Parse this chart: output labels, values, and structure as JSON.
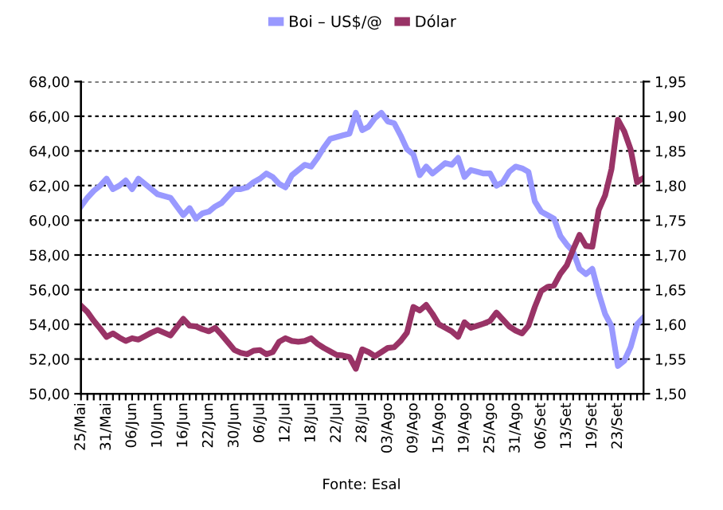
{
  "chart_data": {
    "type": "line",
    "legend": "top",
    "grid": "y",
    "line_style": "solid",
    "marker": "none",
    "annotations": [
      "Fonte: Esal"
    ],
    "categories": [
      "25/Mai",
      null,
      null,
      null,
      "31/Mai",
      null,
      null,
      null,
      "06/Jun",
      null,
      null,
      null,
      "10/Jun",
      null,
      null,
      null,
      "16/Jun",
      null,
      null,
      null,
      "22/Jun",
      null,
      null,
      null,
      "30/Jun",
      null,
      null,
      null,
      "06/Jul",
      null,
      null,
      null,
      "12/Jul",
      null,
      null,
      null,
      "18/Jul",
      null,
      null,
      null,
      "22/Jul",
      null,
      null,
      null,
      "28/Jul",
      null,
      null,
      null,
      "03/Ago",
      null,
      null,
      null,
      "09/Ago",
      null,
      null,
      null,
      "15/Ago",
      null,
      null,
      null,
      "19/Ago",
      null,
      null,
      null,
      "25/Ago",
      null,
      null,
      null,
      "31/Ago",
      null,
      null,
      null,
      "06/Set",
      null,
      null,
      null,
      "13/Set",
      null,
      null,
      null,
      "19/Set",
      null,
      null,
      null,
      "23/Set",
      null,
      null,
      null,
      null
    ],
    "ylim": [
      50,
      68
    ],
    "yticks": [
      {
        "value": 50,
        "label": "50,00"
      },
      {
        "value": 52,
        "label": "52,00"
      },
      {
        "value": 54,
        "label": "54,00"
      },
      {
        "value": 56,
        "label": "56,00"
      },
      {
        "value": 58,
        "label": "58,00"
      },
      {
        "value": 60,
        "label": "60,00"
      },
      {
        "value": 62,
        "label": "62,00"
      },
      {
        "value": 64,
        "label": "64,00"
      },
      {
        "value": 66,
        "label": "66,00"
      },
      {
        "value": 68,
        "label": "68,00"
      }
    ],
    "y2lim": [
      1.5,
      1.95
    ],
    "y2ticks": [
      {
        "value": 1.5,
        "label": "1,50"
      },
      {
        "value": 1.55,
        "label": "1,55"
      },
      {
        "value": 1.6,
        "label": "1,60"
      },
      {
        "value": 1.65,
        "label": "1,65"
      },
      {
        "value": 1.7,
        "label": "1,70"
      },
      {
        "value": 1.75,
        "label": "1,75"
      },
      {
        "value": 1.8,
        "label": "1,80"
      },
      {
        "value": 1.85,
        "label": "1,85"
      },
      {
        "value": 1.9,
        "label": "1,90"
      },
      {
        "value": 1.95,
        "label": "1,95"
      }
    ],
    "series": [
      {
        "name": "Boi – US$/@",
        "color": "#9999ff",
        "values": [
          60.8,
          61.3,
          61.7,
          62.0,
          62.4,
          61.8,
          62.0,
          62.3,
          61.8,
          62.4,
          62.1,
          61.8,
          61.5,
          61.4,
          61.3,
          60.8,
          60.3,
          60.7,
          60.1,
          60.4,
          60.5,
          60.8,
          61.0,
          61.4,
          61.8,
          61.8,
          61.9,
          62.2,
          62.4,
          62.7,
          62.5,
          62.1,
          61.9,
          62.6,
          62.9,
          63.2,
          63.1,
          63.6,
          64.2,
          64.7,
          64.8,
          64.9,
          65.0,
          66.2,
          65.2,
          65.4,
          65.9,
          66.2,
          65.7,
          65.6,
          64.9,
          64.1,
          63.8,
          62.6,
          63.1,
          62.7,
          63.0,
          63.3,
          63.2,
          63.6,
          62.5,
          62.9,
          62.8,
          62.7,
          62.7,
          62.0,
          62.2,
          62.8,
          63.1,
          63.0,
          62.8,
          61.1,
          60.5,
          60.3,
          60.1,
          59.1,
          58.6,
          58.2,
          57.2,
          56.9,
          57.2,
          55.8,
          54.6,
          53.9,
          51.6,
          51.9,
          52.7,
          54.0,
          54.4
        ]
      },
      {
        "name": "Dólar",
        "color": "#993366",
        "axis": "y2",
        "values": [
          1.627,
          1.618,
          1.605,
          1.594,
          1.582,
          1.587,
          1.581,
          1.576,
          1.58,
          1.578,
          1.583,
          1.588,
          1.592,
          1.588,
          1.584,
          1.596,
          1.608,
          1.598,
          1.597,
          1.593,
          1.59,
          1.595,
          1.585,
          1.574,
          1.563,
          1.559,
          1.557,
          1.562,
          1.563,
          1.557,
          1.56,
          1.575,
          1.58,
          1.576,
          1.575,
          1.576,
          1.58,
          1.572,
          1.566,
          1.561,
          1.556,
          1.555,
          1.553,
          1.536,
          1.564,
          1.56,
          1.554,
          1.56,
          1.566,
          1.567,
          1.576,
          1.588,
          1.625,
          1.62,
          1.628,
          1.615,
          1.6,
          1.595,
          1.59,
          1.582,
          1.603,
          1.595,
          1.598,
          1.601,
          1.605,
          1.617,
          1.607,
          1.597,
          1.591,
          1.587,
          1.598,
          1.625,
          1.648,
          1.654,
          1.656,
          1.673,
          1.685,
          1.708,
          1.729,
          1.713,
          1.712,
          1.765,
          1.786,
          1.824,
          1.895,
          1.878,
          1.852,
          1.805,
          1.811
        ]
      }
    ]
  }
}
